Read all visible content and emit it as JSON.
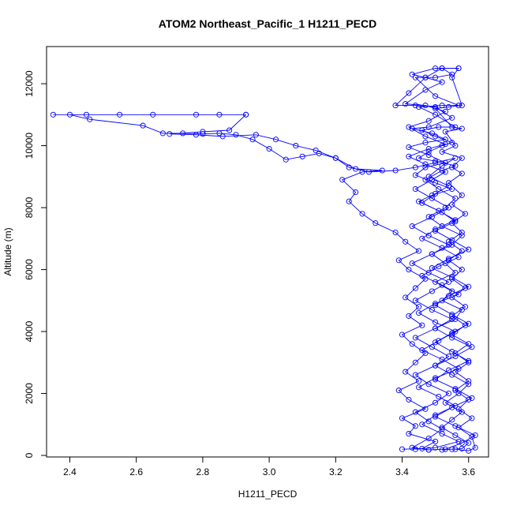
{
  "chart_data": {
    "type": "line",
    "title": "ATOM2 Northeast_Pacific_1 H1211_PECD",
    "xlabel": "H1211_PECD",
    "ylabel": "Altitude (m)",
    "xlim": [
      2.33,
      3.66
    ],
    "ylim": [
      -50,
      13200
    ],
    "x_ticks": [
      2.4,
      2.6,
      2.8,
      3.0,
      3.2,
      3.4,
      3.6
    ],
    "x_tick_labels": [
      "2.4",
      "2.6",
      "2.8",
      "3.0",
      "3.2",
      "3.4",
      "3.6"
    ],
    "y_ticks": [
      0,
      2000,
      4000,
      6000,
      8000,
      10000,
      12000
    ],
    "y_tick_labels": [
      "0",
      "2000",
      "4000",
      "6000",
      "8000",
      "10000",
      "12000"
    ],
    "grid": false,
    "legend": "none",
    "series": [
      {
        "color": "#0000ff",
        "marker": "open-circle",
        "points": [
          [
            3.52,
            180
          ],
          [
            3.55,
            200
          ],
          [
            3.58,
            220
          ],
          [
            3.6,
            400
          ],
          [
            3.56,
            650
          ],
          [
            3.52,
            900
          ],
          [
            3.55,
            1150
          ],
          [
            3.58,
            1400
          ],
          [
            3.53,
            1700
          ],
          [
            3.57,
            2000
          ],
          [
            3.6,
            2300
          ],
          [
            3.55,
            2600
          ],
          [
            3.5,
            2900
          ],
          [
            3.56,
            3200
          ],
          [
            3.61,
            3500
          ],
          [
            3.55,
            3800
          ],
          [
            3.5,
            4100
          ],
          [
            3.56,
            4400
          ],
          [
            3.58,
            4700
          ],
          [
            3.52,
            5000
          ],
          [
            3.55,
            5300
          ],
          [
            3.5,
            5600
          ],
          [
            3.56,
            5900
          ],
          [
            3.53,
            6200
          ],
          [
            3.49,
            6500
          ],
          [
            3.55,
            6800
          ],
          [
            3.58,
            7100
          ],
          [
            3.52,
            7400
          ],
          [
            3.48,
            7700
          ],
          [
            3.53,
            8000
          ],
          [
            3.56,
            8300
          ],
          [
            3.51,
            8600
          ],
          [
            3.47,
            8900
          ],
          [
            3.52,
            9200
          ],
          [
            3.56,
            9350
          ],
          [
            3.5,
            9500
          ],
          [
            3.45,
            9600
          ],
          [
            3.48,
            9800
          ],
          [
            3.52,
            10000
          ],
          [
            3.55,
            10100
          ],
          [
            3.5,
            10300
          ],
          [
            3.46,
            10500
          ],
          [
            3.51,
            10600
          ],
          [
            3.56,
            10600
          ],
          [
            3.5,
            11000
          ],
          [
            3.45,
            11250
          ],
          [
            3.52,
            11300
          ],
          [
            3.57,
            11300
          ],
          [
            3.5,
            11600
          ],
          [
            3.44,
            12200
          ],
          [
            3.5,
            12200
          ],
          [
            3.55,
            12300
          ],
          [
            3.52,
            12500
          ]
        ]
      },
      {
        "color": "#0000ff",
        "marker": "open-circle",
        "points": [
          [
            3.52,
            12500
          ],
          [
            3.47,
            12200
          ],
          [
            3.42,
            11700
          ],
          [
            3.38,
            11300
          ],
          [
            3.44,
            11300
          ],
          [
            3.5,
            11250
          ],
          [
            3.55,
            10900
          ],
          [
            3.48,
            10600
          ],
          [
            3.43,
            10550
          ],
          [
            3.49,
            10400
          ],
          [
            3.53,
            10200
          ],
          [
            3.47,
            10100
          ],
          [
            3.42,
            9950
          ],
          [
            3.48,
            9700
          ],
          [
            3.53,
            9450
          ],
          [
            3.47,
            9300
          ],
          [
            3.44,
            9050
          ],
          [
            3.5,
            8800
          ],
          [
            3.55,
            8600
          ],
          [
            3.49,
            8400
          ],
          [
            3.45,
            8200
          ],
          [
            3.51,
            7900
          ],
          [
            3.56,
            7600
          ],
          [
            3.5,
            7300
          ],
          [
            3.46,
            7000
          ],
          [
            3.52,
            6700
          ],
          [
            3.57,
            6400
          ],
          [
            3.51,
            6100
          ],
          [
            3.46,
            5800
          ],
          [
            3.52,
            5500
          ],
          [
            3.57,
            5200
          ],
          [
            3.5,
            4900
          ],
          [
            3.45,
            4600
          ],
          [
            3.5,
            4300
          ],
          [
            3.56,
            4000
          ],
          [
            3.51,
            3700
          ],
          [
            3.46,
            3400
          ],
          [
            3.52,
            3100
          ],
          [
            3.57,
            2800
          ],
          [
            3.5,
            2500
          ],
          [
            3.45,
            2200
          ],
          [
            3.51,
            1900
          ],
          [
            3.56,
            1600
          ],
          [
            3.5,
            1300
          ],
          [
            3.46,
            1000
          ],
          [
            3.52,
            700
          ],
          [
            3.57,
            450
          ],
          [
            3.5,
            250
          ],
          [
            3.44,
            200
          ]
        ]
      },
      {
        "color": "#0000ff",
        "marker": "open-circle",
        "points": [
          [
            3.4,
            200
          ],
          [
            3.46,
            220
          ],
          [
            3.5,
            450
          ],
          [
            3.42,
            700
          ],
          [
            3.44,
            950
          ],
          [
            3.4,
            1200
          ],
          [
            3.47,
            1500
          ],
          [
            3.42,
            1800
          ],
          [
            3.39,
            2100
          ],
          [
            3.45,
            2400
          ],
          [
            3.41,
            2700
          ],
          [
            3.44,
            3000
          ],
          [
            3.47,
            3300
          ],
          [
            3.43,
            3600
          ],
          [
            3.4,
            3900
          ],
          [
            3.46,
            4200
          ],
          [
            3.42,
            4500
          ],
          [
            3.45,
            4800
          ],
          [
            3.41,
            5100
          ],
          [
            3.44,
            5400
          ],
          [
            3.47,
            5700
          ],
          [
            3.42,
            6000
          ],
          [
            3.39,
            6300
          ],
          [
            3.45,
            6600
          ],
          [
            3.41,
            6900
          ],
          [
            3.38,
            7200
          ],
          [
            3.32,
            7500
          ],
          [
            3.28,
            7800
          ],
          [
            3.24,
            8200
          ],
          [
            3.26,
            8500
          ],
          [
            3.22,
            8900
          ],
          [
            3.28,
            9150
          ],
          [
            3.34,
            9200
          ],
          [
            3.26,
            9250
          ],
          [
            3.2,
            9600
          ],
          [
            3.15,
            9750
          ],
          [
            3.1,
            9650
          ],
          [
            3.05,
            9550
          ],
          [
            3.0,
            9900
          ],
          [
            2.95,
            10200
          ],
          [
            2.9,
            10350
          ],
          [
            2.85,
            10400
          ],
          [
            2.8,
            10380
          ],
          [
            2.74,
            10400
          ],
          [
            2.68,
            10400
          ],
          [
            2.62,
            10650
          ],
          [
            2.46,
            10850
          ],
          [
            2.4,
            11000
          ],
          [
            2.35,
            11000
          ],
          [
            2.45,
            11000
          ],
          [
            2.55,
            11000
          ],
          [
            2.65,
            11000
          ],
          [
            2.78,
            11000
          ],
          [
            2.85,
            11000
          ],
          [
            2.93,
            11000
          ]
        ]
      },
      {
        "color": "#0000ff",
        "marker": "open-circle",
        "points": [
          [
            2.93,
            11000
          ],
          [
            2.88,
            10500
          ],
          [
            2.8,
            10450
          ],
          [
            2.7,
            10380
          ],
          [
            2.78,
            10350
          ],
          [
            2.86,
            10300
          ],
          [
            2.96,
            10350
          ],
          [
            3.02,
            10200
          ],
          [
            3.08,
            10000
          ],
          [
            3.14,
            9850
          ],
          [
            3.2,
            9600
          ],
          [
            3.24,
            9300
          ],
          [
            3.3,
            9150
          ],
          [
            3.38,
            9200
          ],
          [
            3.44,
            9300
          ],
          [
            3.5,
            9450
          ],
          [
            3.56,
            9600
          ],
          [
            3.52,
            9350
          ],
          [
            3.48,
            9000
          ],
          [
            3.54,
            8700
          ],
          [
            3.5,
            8450
          ],
          [
            3.46,
            8150
          ],
          [
            3.52,
            7850
          ],
          [
            3.56,
            7550
          ],
          [
            3.5,
            7250
          ],
          [
            3.55,
            6950
          ],
          [
            3.6,
            6650
          ],
          [
            3.54,
            6350
          ],
          [
            3.49,
            6050
          ],
          [
            3.55,
            5750
          ],
          [
            3.6,
            5450
          ],
          [
            3.54,
            5150
          ],
          [
            3.5,
            4850
          ],
          [
            3.55,
            4550
          ],
          [
            3.6,
            4250
          ],
          [
            3.55,
            3950
          ],
          [
            3.5,
            3650
          ],
          [
            3.55,
            3350
          ],
          [
            3.6,
            3050
          ],
          [
            3.54,
            2750
          ],
          [
            3.5,
            2450
          ],
          [
            3.56,
            2150
          ],
          [
            3.61,
            1850
          ],
          [
            3.55,
            1550
          ],
          [
            3.5,
            1250
          ],
          [
            3.56,
            950
          ],
          [
            3.62,
            650
          ],
          [
            3.58,
            400
          ],
          [
            3.53,
            200
          ],
          [
            3.48,
            180
          ]
        ]
      },
      {
        "color": "#0000ff",
        "marker": "open-circle",
        "points": [
          [
            3.48,
            180
          ],
          [
            3.43,
            250
          ],
          [
            3.48,
            550
          ],
          [
            3.52,
            850
          ],
          [
            3.48,
            1100
          ],
          [
            3.44,
            1400
          ],
          [
            3.5,
            1700
          ],
          [
            3.54,
            2000
          ],
          [
            3.48,
            2300
          ],
          [
            3.44,
            2600
          ],
          [
            3.5,
            2900
          ],
          [
            3.54,
            3200
          ],
          [
            3.49,
            3500
          ],
          [
            3.44,
            3800
          ],
          [
            3.5,
            4100
          ],
          [
            3.55,
            4400
          ],
          [
            3.49,
            4700
          ],
          [
            3.44,
            5000
          ],
          [
            3.49,
            5300
          ],
          [
            3.54,
            5600
          ],
          [
            3.48,
            5900
          ],
          [
            3.43,
            6200
          ],
          [
            3.49,
            6500
          ],
          [
            3.54,
            6800
          ],
          [
            3.48,
            7100
          ],
          [
            3.43,
            7400
          ],
          [
            3.49,
            7700
          ],
          [
            3.54,
            8000
          ],
          [
            3.49,
            8300
          ],
          [
            3.44,
            8600
          ],
          [
            3.49,
            8900
          ],
          [
            3.53,
            9150
          ],
          [
            3.47,
            9400
          ],
          [
            3.42,
            9650
          ],
          [
            3.48,
            9900
          ],
          [
            3.53,
            10050
          ],
          [
            3.47,
            10300
          ],
          [
            3.42,
            10600
          ],
          [
            3.48,
            10800
          ],
          [
            3.53,
            11100
          ],
          [
            3.47,
            11300
          ],
          [
            3.41,
            11350
          ],
          [
            3.47,
            11800
          ],
          [
            3.52,
            12050
          ],
          [
            3.47,
            12200
          ],
          [
            3.43,
            12300
          ],
          [
            3.5,
            12500
          ],
          [
            3.57,
            12500
          ]
        ]
      },
      {
        "color": "#0000ff",
        "marker": "open-circle",
        "points": [
          [
            3.57,
            12500
          ],
          [
            3.55,
            12200
          ],
          [
            3.58,
            11300
          ],
          [
            3.54,
            11250
          ],
          [
            3.5,
            11200
          ],
          [
            3.55,
            10600
          ],
          [
            3.58,
            10550
          ],
          [
            3.53,
            10450
          ],
          [
            3.56,
            10000
          ],
          [
            3.52,
            9800
          ],
          [
            3.58,
            9600
          ],
          [
            3.55,
            9300
          ],
          [
            3.58,
            9100
          ],
          [
            3.54,
            8800
          ],
          [
            3.58,
            8400
          ],
          [
            3.55,
            8100
          ],
          [
            3.59,
            7800
          ],
          [
            3.55,
            7500
          ],
          [
            3.58,
            7200
          ],
          [
            3.54,
            6900
          ],
          [
            3.58,
            6600
          ],
          [
            3.54,
            6300
          ],
          [
            3.58,
            6000
          ],
          [
            3.55,
            5700
          ],
          [
            3.59,
            5400
          ],
          [
            3.55,
            5100
          ],
          [
            3.59,
            4800
          ],
          [
            3.55,
            4500
          ],
          [
            3.59,
            4200
          ],
          [
            3.55,
            3900
          ],
          [
            3.6,
            3600
          ],
          [
            3.56,
            3300
          ],
          [
            3.6,
            3000
          ],
          [
            3.56,
            2700
          ],
          [
            3.6,
            2400
          ],
          [
            3.56,
            2100
          ],
          [
            3.6,
            1800
          ],
          [
            3.57,
            1500
          ],
          [
            3.61,
            1200
          ],
          [
            3.57,
            900
          ],
          [
            3.61,
            600
          ],
          [
            3.62,
            250
          ],
          [
            3.6,
            150
          ],
          [
            3.56,
            200
          ]
        ]
      }
    ]
  }
}
